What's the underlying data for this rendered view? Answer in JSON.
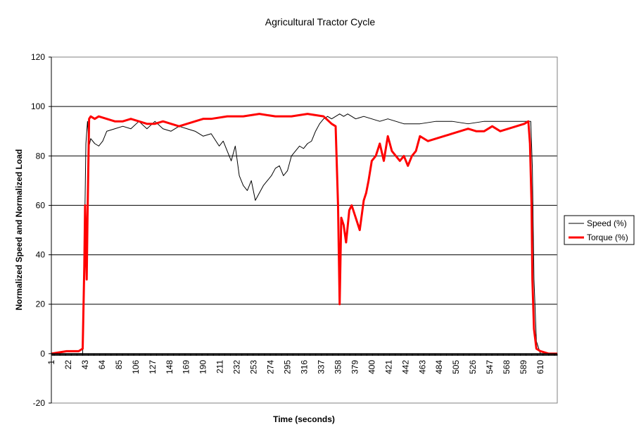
{
  "chart_data": {
    "type": "line",
    "title": "Agricultural Tractor Cycle",
    "xlabel": "Time (seconds)",
    "ylabel": "Normalized Speed and Normalized Load",
    "ylim": [
      -20,
      120
    ],
    "yticks": [
      -20,
      0,
      20,
      40,
      60,
      80,
      100,
      120
    ],
    "xlim": [
      1,
      631
    ],
    "xticks": [
      1,
      22,
      43,
      64,
      85,
      106,
      127,
      148,
      169,
      190,
      211,
      232,
      253,
      274,
      295,
      316,
      337,
      358,
      379,
      400,
      421,
      442,
      463,
      484,
      505,
      526,
      547,
      568,
      589,
      610
    ],
    "grid": "horizontal",
    "legend_position": "right",
    "series": [
      {
        "name": "Speed (%)",
        "color": "#000000",
        "x": [
          1,
          20,
          40,
          42,
          44,
          46,
          48,
          50,
          55,
          60,
          65,
          70,
          80,
          90,
          100,
          110,
          120,
          130,
          140,
          150,
          160,
          170,
          180,
          190,
          200,
          210,
          215,
          220,
          225,
          230,
          235,
          240,
          245,
          250,
          255,
          260,
          265,
          270,
          275,
          280,
          285,
          290,
          295,
          300,
          305,
          310,
          315,
          320,
          325,
          330,
          335,
          340,
          345,
          350,
          355,
          360,
          365,
          370,
          380,
          390,
          400,
          410,
          420,
          440,
          460,
          480,
          500,
          520,
          540,
          560,
          580,
          590,
          598,
          600,
          602,
          605,
          610,
          620,
          631
        ],
        "values": [
          0,
          0,
          0,
          40,
          85,
          94,
          84,
          87,
          85,
          84,
          86,
          90,
          91,
          92,
          91,
          94,
          91,
          94,
          91,
          90,
          92,
          91,
          90,
          88,
          89,
          84,
          86,
          82,
          78,
          84,
          72,
          68,
          66,
          70,
          62,
          65,
          68,
          70,
          72,
          75,
          76,
          72,
          74,
          80,
          82,
          84,
          83,
          85,
          86,
          90,
          93,
          95,
          96,
          95,
          96,
          97,
          96,
          97,
          95,
          96,
          95,
          94,
          95,
          93,
          93,
          94,
          94,
          93,
          94,
          94,
          94,
          94,
          94,
          75,
          30,
          5,
          0,
          0,
          0
        ]
      },
      {
        "name": "Torque (%)",
        "color": "#ff0000",
        "x": [
          1,
          20,
          35,
          40,
          42,
          43,
          45,
          46,
          47,
          48,
          50,
          55,
          60,
          70,
          80,
          90,
          100,
          110,
          120,
          130,
          140,
          150,
          160,
          170,
          180,
          190,
          200,
          220,
          240,
          260,
          280,
          300,
          320,
          340,
          350,
          355,
          358,
          360,
          362,
          365,
          368,
          372,
          375,
          380,
          385,
          390,
          393,
          396,
          400,
          405,
          410,
          415,
          420,
          425,
          430,
          435,
          440,
          445,
          450,
          455,
          460,
          470,
          480,
          490,
          500,
          510,
          520,
          530,
          540,
          550,
          560,
          570,
          580,
          590,
          595,
          597,
          599,
          600,
          602,
          605,
          610,
          620,
          631
        ],
        "values": [
          0,
          1,
          1,
          2,
          35,
          60,
          30,
          55,
          75,
          95,
          96,
          95,
          96,
          95,
          94,
          94,
          95,
          94,
          93,
          93,
          94,
          93,
          92,
          93,
          94,
          95,
          95,
          96,
          96,
          97,
          96,
          96,
          97,
          96,
          93,
          92,
          60,
          20,
          55,
          52,
          45,
          58,
          60,
          55,
          50,
          62,
          65,
          70,
          78,
          80,
          85,
          78,
          88,
          82,
          80,
          78,
          80,
          76,
          80,
          82,
          88,
          86,
          87,
          88,
          89,
          90,
          91,
          90,
          90,
          92,
          90,
          91,
          92,
          93,
          94,
          85,
          60,
          30,
          10,
          2,
          1,
          0,
          0
        ]
      }
    ]
  }
}
